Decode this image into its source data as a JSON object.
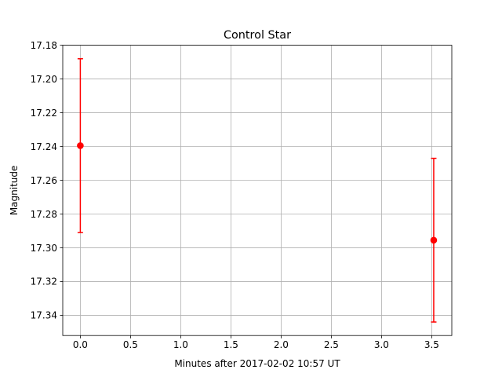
{
  "chart_data": {
    "type": "scatter",
    "title": "Control Star",
    "xlabel": "Minutes after 2017-02-02 10:57 UT",
    "ylabel": "Magnitude",
    "xlim": [
      -0.175,
      3.7
    ],
    "ylim": [
      17.18,
      17.352
    ],
    "y_inverted": true,
    "x_ticks": [
      0.0,
      0.5,
      1.0,
      1.5,
      2.0,
      2.5,
      3.0,
      3.5
    ],
    "x_tick_labels": [
      "0.0",
      "0.5",
      "1.0",
      "1.5",
      "2.0",
      "2.5",
      "3.0",
      "3.5"
    ],
    "y_ticks": [
      17.18,
      17.2,
      17.22,
      17.24,
      17.26,
      17.28,
      17.3,
      17.32,
      17.34
    ],
    "y_tick_labels": [
      "17.18",
      "17.20",
      "17.22",
      "17.24",
      "17.26",
      "17.28",
      "17.30",
      "17.32",
      "17.34"
    ],
    "grid": true,
    "marker_color": "#ff0000",
    "grid_color": "#b0b0b0",
    "series": [
      {
        "points": [
          {
            "x": 0.0,
            "y": 17.2395,
            "yerr": 0.0515
          },
          {
            "x": 3.52,
            "y": 17.2955,
            "yerr": 0.0485
          }
        ]
      }
    ]
  }
}
